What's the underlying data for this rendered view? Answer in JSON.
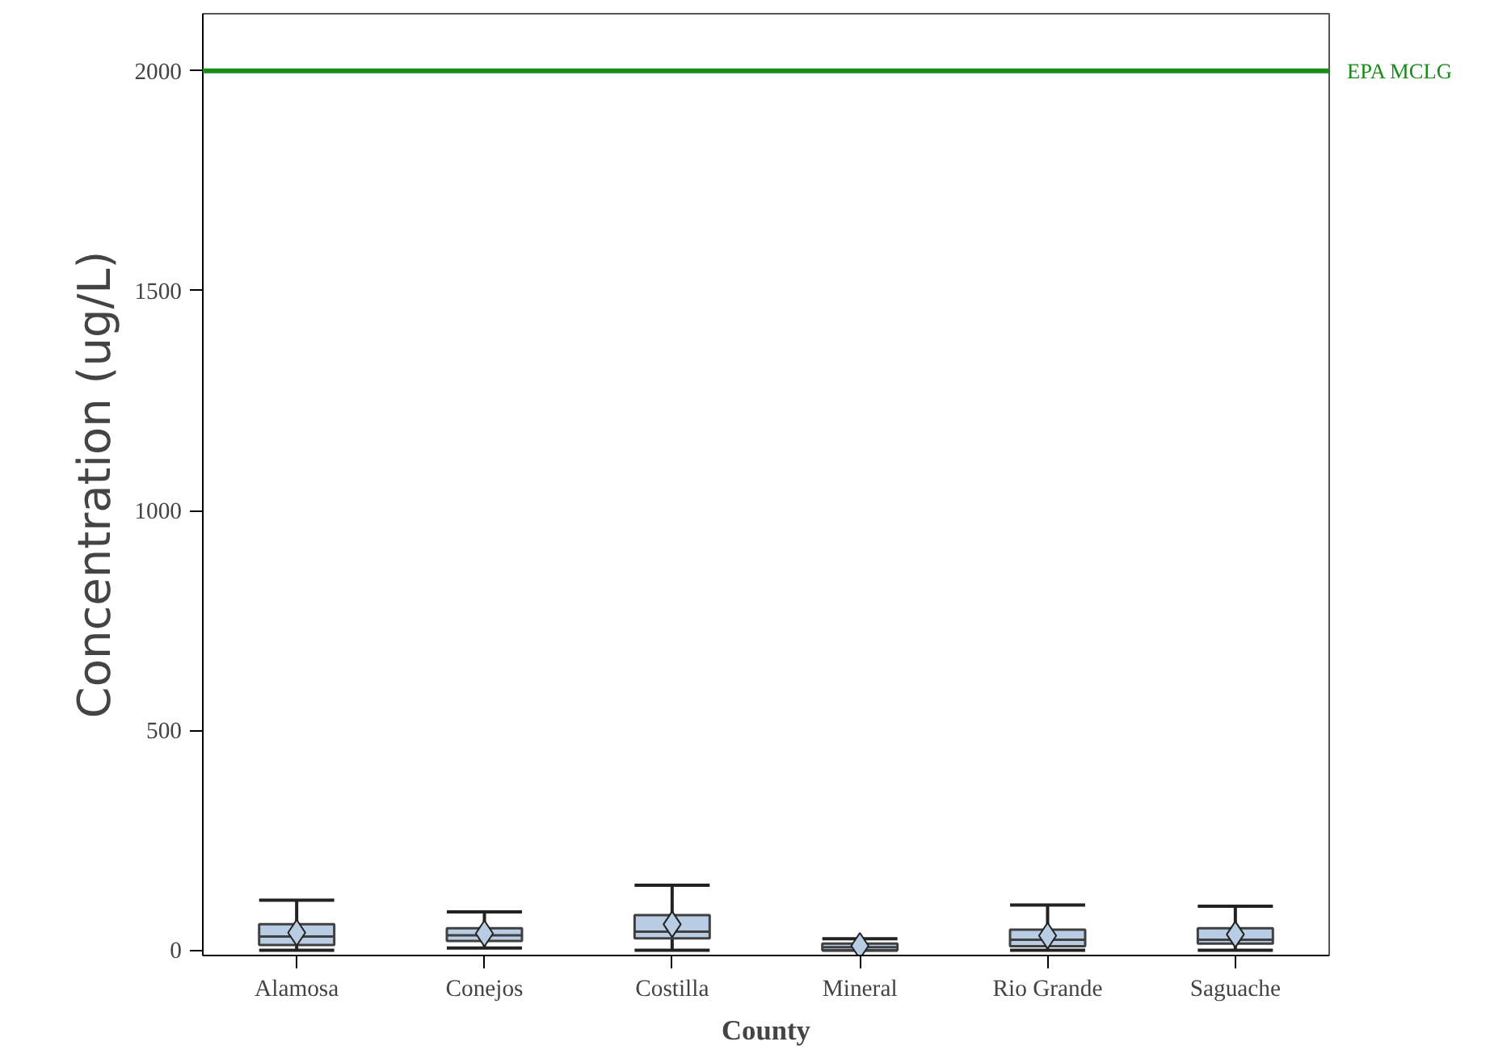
{
  "chart_data": {
    "type": "box",
    "xlabel": "County",
    "ylabel": "Concentration (ug/L)",
    "categories": [
      "Alamosa",
      "Conejos",
      "Costilla",
      "Mineral",
      "Rio Grande",
      "Saguache"
    ],
    "boxes": [
      {
        "low": 0,
        "q1": 12,
        "median": 31,
        "q3": 59,
        "high": 114,
        "mean": 40
      },
      {
        "low": 5,
        "q1": 21,
        "median": 34,
        "q3": 50,
        "high": 87,
        "mean": 38
      },
      {
        "low": 0,
        "q1": 27,
        "median": 42,
        "q3": 80,
        "high": 148,
        "mean": 59
      },
      {
        "low": 0,
        "q1": 0,
        "median": 7,
        "q3": 15,
        "high": 26,
        "mean": 10
      },
      {
        "low": 0,
        "q1": 9,
        "median": 24,
        "q3": 47,
        "high": 103,
        "mean": 33
      },
      {
        "low": 0,
        "q1": 15,
        "median": 24,
        "q3": 50,
        "high": 100,
        "mean": 36
      }
    ],
    "color": "#b8cce4",
    "ylim": [
      -12,
      2130
    ],
    "yticks": [
      0,
      500,
      1000,
      1500,
      2000
    ],
    "ref_lines": [
      {
        "axis": "y",
        "value": 2000,
        "label": "EPA MCLG",
        "color": "#1a8c1a"
      }
    ],
    "grid": false
  }
}
